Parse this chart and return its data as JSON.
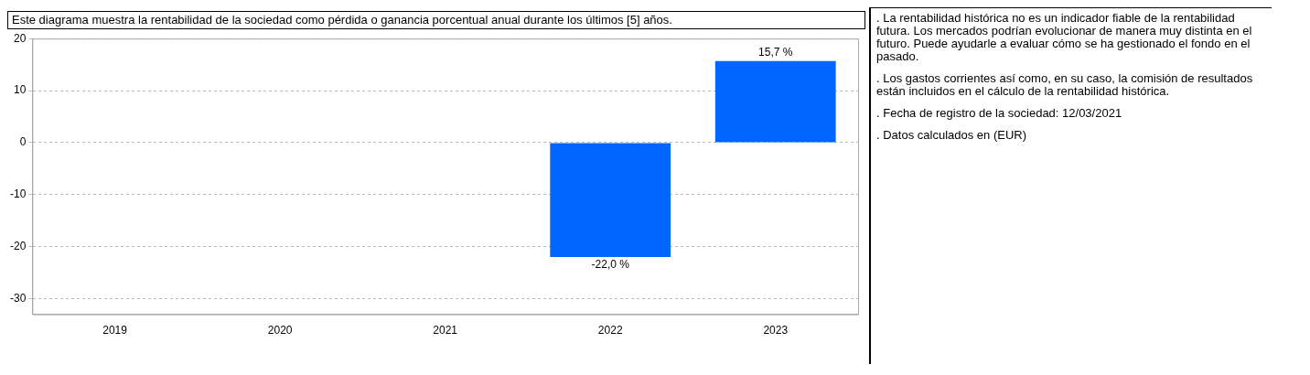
{
  "chart_data": {
    "type": "bar",
    "title": "Este diagrama muestra la rentabilidad de la sociedad como pérdida o ganancia porcentual anual durante los últimos [5] años.",
    "categories": [
      "2019",
      "2020",
      "2021",
      "2022",
      "2023"
    ],
    "values": [
      null,
      null,
      null,
      -22.0,
      15.7
    ],
    "color": "#0066ff",
    "value_labels": [
      null,
      null,
      null,
      "-22,0 %",
      "15,7 %"
    ],
    "ylim": [
      -33,
      20
    ],
    "yticks": [
      -30,
      -20,
      -10,
      0,
      10,
      20
    ],
    "grid": "y",
    "legend": false,
    "annotations": [
      ". La rentabilidad histórica no es un indicador fiable de la rentabilidad futura. Los mercados podrían evolucionar de manera muy distinta en el futuro. Puede ayudarle a evaluar cómo se ha gestionado el fondo en el pasado.",
      ". Los gastos corrientes así como, en su caso, la comisión de resultados están incluidos en el cálculo de la rentabilidad histórica.",
      ". Fecha de registro de la sociedad: 12/03/2021",
      ". Datos calculados en (EUR)"
    ]
  }
}
